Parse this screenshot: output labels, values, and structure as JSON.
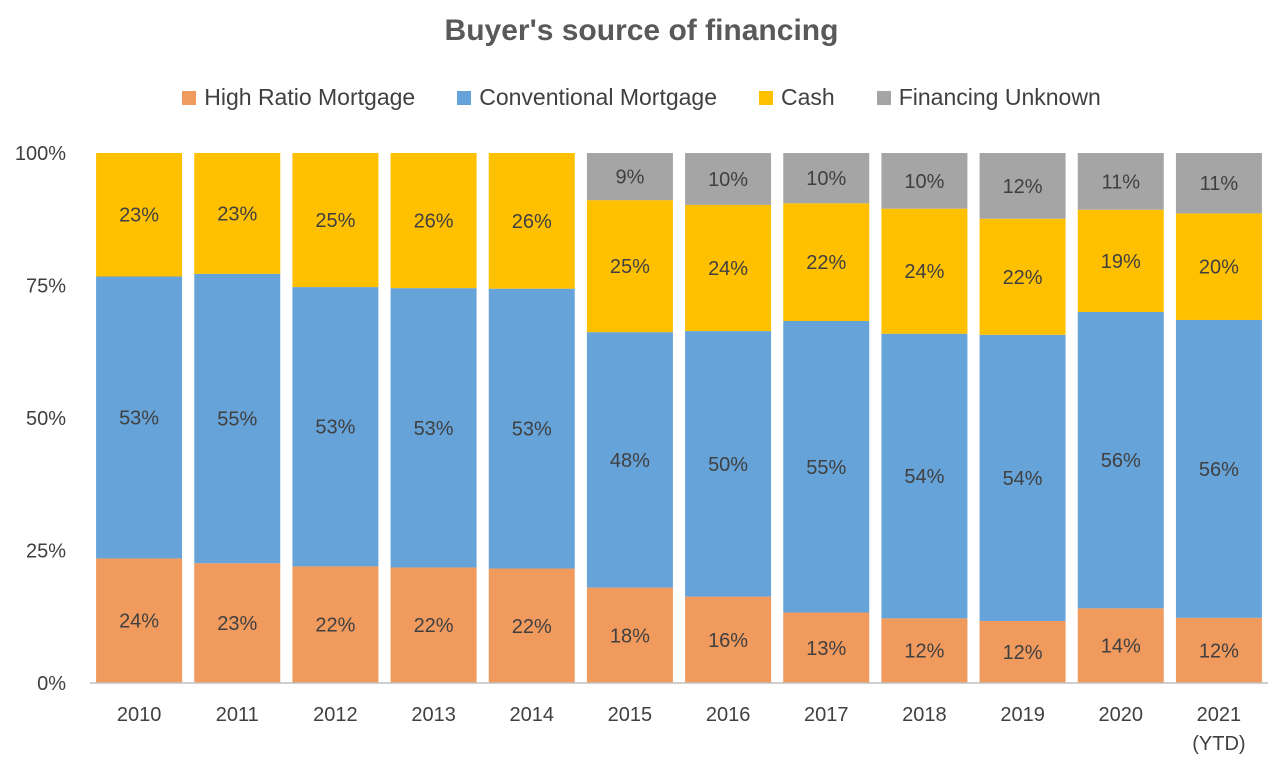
{
  "chart_data": {
    "type": "bar",
    "stacked": true,
    "title": "Buyer's source of financing",
    "categories": [
      "2010",
      "2011",
      "2012",
      "2013",
      "2014",
      "2015",
      "2016",
      "2017",
      "2018",
      "2019",
      "2020",
      "2021"
    ],
    "category_sublabels": [
      "",
      "",
      "",
      "",
      "",
      "",
      "",
      "",
      "",
      "",
      "",
      "(YTD)"
    ],
    "ylim": [
      0,
      100
    ],
    "yticks": [
      "0%",
      "25%",
      "50%",
      "75%",
      "100%"
    ],
    "ytick_values": [
      0,
      25,
      50,
      75,
      100
    ],
    "legend_position": "top",
    "grid": false,
    "series": [
      {
        "name": "High Ratio Mortgage",
        "color": "#F09A5E",
        "values": [
          23.5,
          22.6,
          22.0,
          21.8,
          21.6,
          18.0,
          16.3,
          13.3,
          12.2,
          11.7,
          14.1,
          12.3
        ],
        "labels": [
          "24%",
          "23%",
          "22%",
          "22%",
          "22%",
          "18%",
          "16%",
          "13%",
          "12%",
          "12%",
          "14%",
          "12%"
        ]
      },
      {
        "name": "Conventional Mortgage",
        "color": "#66A3D9",
        "values": [
          53.2,
          54.6,
          52.7,
          52.7,
          52.8,
          48.2,
          50.1,
          55.0,
          53.7,
          54.0,
          55.9,
          56.2
        ],
        "labels": [
          "53%",
          "55%",
          "53%",
          "53%",
          "53%",
          "48%",
          "50%",
          "55%",
          "54%",
          "54%",
          "56%",
          "56%"
        ]
      },
      {
        "name": "Cash",
        "color": "#FFC000",
        "values": [
          23.3,
          22.8,
          25.3,
          25.5,
          25.6,
          24.9,
          23.8,
          22.2,
          23.6,
          21.9,
          19.3,
          20.1
        ],
        "labels": [
          "23%",
          "23%",
          "25%",
          "26%",
          "26%",
          "25%",
          "24%",
          "22%",
          "24%",
          "22%",
          "19%",
          "20%"
        ]
      },
      {
        "name": "Financing Unknown",
        "color": "#A5A5A5",
        "values": [
          0,
          0,
          0,
          0,
          0,
          8.9,
          9.8,
          9.5,
          10.5,
          12.4,
          10.7,
          11.4
        ],
        "labels": [
          "",
          "",
          "",
          "",
          "",
          "9%",
          "10%",
          "10%",
          "10%",
          "12%",
          "11%",
          "11%"
        ]
      }
    ]
  }
}
